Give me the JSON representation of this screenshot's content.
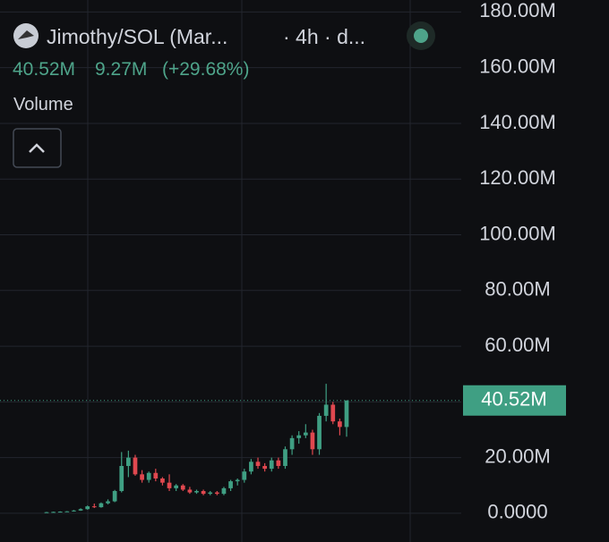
{
  "header": {
    "pair": "Jimothy/SOL (Mar...",
    "interval": "· 4h · d...",
    "price": "40.52M",
    "change": "9.27M",
    "change_pct": "(+29.68%)",
    "indicator": "Volume"
  },
  "chart_data": {
    "type": "candlestick",
    "up_color": "#3f9f83",
    "down_color": "#e0484f",
    "grid": true,
    "ylim": [
      -10.3,
      184.3
    ],
    "yticks": [
      {
        "value": 0,
        "label": "0.0000"
      },
      {
        "value": 20,
        "label": "20.00M"
      },
      {
        "value": 40,
        "label": "40.00M"
      },
      {
        "value": 60,
        "label": "60.00M"
      },
      {
        "value": 80,
        "label": "80.00M"
      },
      {
        "value": 100,
        "label": "100.00M"
      },
      {
        "value": 120,
        "label": "120.00M"
      },
      {
        "value": 140,
        "label": "140.00M"
      },
      {
        "value": 160,
        "label": "160.00M"
      },
      {
        "value": 180,
        "label": "180.00M"
      }
    ],
    "last_price": {
      "value": 40.52,
      "label": "40.52M"
    },
    "series": [
      {
        "open": [
          0.3,
          0.4,
          0.5,
          0.6,
          0.7,
          1.0,
          1.5,
          2.5,
          2.2,
          3.6,
          4.3,
          8.0,
          17.0,
          20.0,
          14.0,
          12.0,
          14.5,
          12.5,
          11.0,
          9.0,
          10.0,
          8.5,
          7.5,
          8.0,
          7.0,
          7.5,
          7.0,
          9.0,
          11.5,
          12.0,
          15.0,
          18.5,
          17.0,
          16.0,
          19.0,
          17.0,
          23.0,
          27.0,
          28.0,
          29.0,
          23.0,
          35.0,
          39.0,
          33.0,
          31.0
        ],
        "high": [
          0.5,
          0.6,
          0.7,
          0.8,
          1.2,
          1.8,
          2.8,
          3.5,
          3.9,
          5.0,
          8.4,
          22.0,
          22.5,
          21.0,
          15.5,
          15.0,
          16.0,
          13.0,
          14.0,
          10.5,
          10.5,
          9.5,
          8.5,
          8.5,
          8.0,
          8.0,
          9.5,
          12.0,
          12.5,
          16.0,
          19.5,
          20.0,
          18.0,
          20.0,
          20.0,
          24.0,
          28.0,
          29.5,
          32.0,
          30.0,
          36.0,
          46.5,
          40.0,
          34.0,
          40.52
        ],
        "low": [
          0.2,
          0.3,
          0.4,
          0.5,
          0.6,
          0.9,
          1.3,
          1.9,
          2.0,
          3.2,
          4.0,
          7.5,
          13.0,
          13.5,
          11.0,
          11.0,
          11.5,
          10.0,
          8.0,
          8.0,
          8.0,
          7.0,
          7.0,
          6.5,
          6.5,
          6.5,
          6.5,
          8.0,
          10.0,
          11.0,
          14.0,
          16.0,
          15.0,
          15.0,
          16.0,
          16.0,
          21.0,
          25.0,
          27.0,
          21.0,
          21.0,
          33.0,
          32.0,
          28.0,
          27.5
        ],
        "close": [
          0.4,
          0.5,
          0.6,
          0.7,
          1.0,
          1.5,
          2.5,
          2.2,
          3.6,
          4.3,
          8.0,
          17.0,
          20.0,
          14.0,
          12.0,
          14.5,
          12.5,
          11.0,
          9.0,
          10.0,
          8.5,
          7.5,
          8.0,
          7.0,
          7.5,
          7.0,
          9.0,
          11.5,
          12.0,
          15.0,
          18.5,
          17.0,
          16.0,
          19.0,
          17.0,
          23.0,
          27.0,
          28.0,
          29.0,
          23.0,
          35.0,
          39.0,
          33.0,
          31.0,
          40.52
        ]
      }
    ]
  }
}
